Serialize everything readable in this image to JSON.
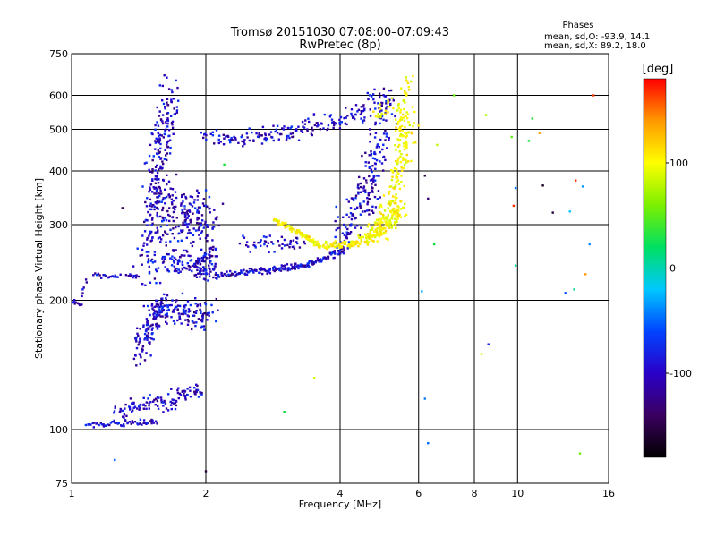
{
  "chart_data": {
    "type": "scatter",
    "title": "Tromsø 20151030 07:08:00–07:09:43",
    "subtitle": "RwPretec (8p)",
    "xlabel": "Frequency [MHz]",
    "ylabel": "Stationary phase Virtual Height [km]",
    "xscale": "log",
    "yscale": "log",
    "xlim": [
      1,
      16
    ],
    "ylim": [
      75,
      750
    ],
    "xticks": [
      1,
      2,
      4,
      6,
      8,
      10,
      16
    ],
    "yticks": [
      75,
      100,
      200,
      300,
      400,
      500,
      600,
      750
    ],
    "grid": true,
    "stats": {
      "title": "Phases",
      "line1": "mean, sd,O: -93.9, 14.1",
      "line2": "mean, sd,X:  89.2, 18.0"
    },
    "colorbar": {
      "label": "[deg]",
      "range": [
        -180,
        180
      ],
      "ticks": [
        100,
        0,
        -100
      ],
      "colors": [
        "#000000",
        "#3a0060",
        "#2a00c8",
        "#0044ff",
        "#00c8ff",
        "#00e060",
        "#7cf000",
        "#ffff00",
        "#ff9900",
        "#ff0000"
      ]
    },
    "series": [
      {
        "traces": [
          {
            "x0": 1.0,
            "x1": 1.05,
            "y0": 200,
            "y1": 195,
            "n": 12,
            "s": 3
          },
          {
            "x0": 1.05,
            "x1": 1.08,
            "y0": 205,
            "y1": 222,
            "n": 6,
            "s": 3
          },
          {
            "x0": 1.12,
            "x1": 1.28,
            "y0": 229,
            "y1": 227,
            "n": 18,
            "s": 2
          },
          {
            "x0": 1.33,
            "x1": 1.4,
            "y0": 229,
            "y1": 226,
            "n": 10,
            "s": 2
          },
          {
            "x0": 1.08,
            "x1": 1.55,
            "y0": 103,
            "y1": 104,
            "n": 60,
            "s": 3
          },
          {
            "x0": 1.25,
            "x1": 1.95,
            "y0": 110,
            "y1": 124,
            "n": 120,
            "s": 9
          },
          {
            "x0": 1.4,
            "x1": 1.6,
            "y0": 150,
            "y1": 200,
            "n": 120,
            "s": 18
          },
          {
            "x0": 1.48,
            "x1": 1.65,
            "y0": 220,
            "y1": 590,
            "n": 240,
            "s": 24
          },
          {
            "x0": 1.55,
            "x1": 2.05,
            "y0": 330,
            "y1": 300,
            "n": 200,
            "s": 28
          },
          {
            "x0": 1.6,
            "x1": 2.1,
            "y0": 250,
            "y1": 232,
            "n": 120,
            "s": 12
          },
          {
            "x0": 1.55,
            "x1": 2.05,
            "y0": 190,
            "y1": 185,
            "n": 120,
            "s": 14
          },
          {
            "x0": 1.9,
            "x1": 2.1,
            "y0": 240,
            "y1": 260,
            "n": 40,
            "s": 10
          },
          {
            "x0": 2.1,
            "x1": 3.4,
            "y0": 228,
            "y1": 242,
            "n": 130,
            "s": 3
          },
          {
            "x0": 3.4,
            "x1": 4.1,
            "y0": 242,
            "y1": 263,
            "n": 60,
            "s": 3
          },
          {
            "x0": 2.4,
            "x1": 3.3,
            "y0": 270,
            "y1": 270,
            "n": 50,
            "s": 9
          },
          {
            "x0": 1.95,
            "x1": 2.3,
            "y0": 480,
            "y1": 475,
            "n": 26,
            "s": 6
          },
          {
            "x0": 2.3,
            "x1": 3.3,
            "y0": 478,
            "y1": 495,
            "n": 70,
            "s": 8
          },
          {
            "x0": 3.3,
            "x1": 4.5,
            "y0": 500,
            "y1": 540,
            "n": 70,
            "s": 10
          },
          {
            "x0": 4.5,
            "x1": 5.2,
            "y0": 560,
            "y1": 600,
            "n": 40,
            "s": 12
          },
          {
            "x0": 4.0,
            "x1": 4.8,
            "y0": 280,
            "y1": 380,
            "n": 120,
            "s": 22
          },
          {
            "x0": 4.6,
            "x1": 5.1,
            "y0": 390,
            "y1": 540,
            "n": 70,
            "s": 22
          }
        ]
      },
      {
        "traces": [
          {
            "x0": 2.85,
            "x1": 3.6,
            "y0": 308,
            "y1": 268,
            "n": 80,
            "s": 3
          },
          {
            "x0": 3.6,
            "x1": 4.4,
            "y0": 268,
            "y1": 272,
            "n": 60,
            "s": 4
          },
          {
            "x0": 4.4,
            "x1": 5.0,
            "y0": 272,
            "y1": 290,
            "n": 60,
            "s": 6
          },
          {
            "x0": 4.7,
            "x1": 5.5,
            "y0": 290,
            "y1": 320,
            "n": 120,
            "s": 12
          },
          {
            "x0": 5.1,
            "x1": 5.7,
            "y0": 300,
            "y1": 520,
            "n": 140,
            "s": 18
          },
          {
            "x0": 5.4,
            "x1": 5.7,
            "y0": 500,
            "y1": 640,
            "n": 40,
            "s": 12
          },
          {
            "x0": 4.8,
            "x1": 5.3,
            "y0": 545,
            "y1": 575,
            "n": 20,
            "s": 10
          }
        ]
      },
      {
        "points": [
          [
            3.0,
            110
          ],
          [
            6.3,
            93
          ],
          [
            1.3,
            328
          ],
          [
            1.25,
            85
          ],
          [
            6.2,
            118
          ],
          [
            6.5,
            270
          ],
          [
            7.2,
            600
          ],
          [
            8.5,
            540
          ],
          [
            9.7,
            480
          ],
          [
            10.6,
            470
          ],
          [
            11.4,
            370
          ],
          [
            13.5,
            380
          ],
          [
            14.0,
            368
          ],
          [
            14.2,
            230
          ],
          [
            14.5,
            270
          ],
          [
            13.1,
            322
          ],
          [
            12.8,
            208
          ],
          [
            13.4,
            212
          ],
          [
            9.9,
            365
          ],
          [
            9.8,
            332
          ],
          [
            9.9,
            241
          ],
          [
            8.3,
            150
          ],
          [
            8.6,
            158
          ],
          [
            12.0,
            320
          ],
          [
            13.8,
            88
          ],
          [
            6.1,
            210
          ],
          [
            6.3,
            345
          ],
          [
            6.6,
            460
          ],
          [
            6.2,
            390
          ],
          [
            10.8,
            530
          ],
          [
            11.2,
            490
          ],
          [
            14.8,
            600
          ],
          [
            3.5,
            132
          ],
          [
            2.2,
            414
          ],
          [
            2.0,
            80
          ],
          [
            6.0,
            510
          ]
        ]
      }
    ]
  }
}
